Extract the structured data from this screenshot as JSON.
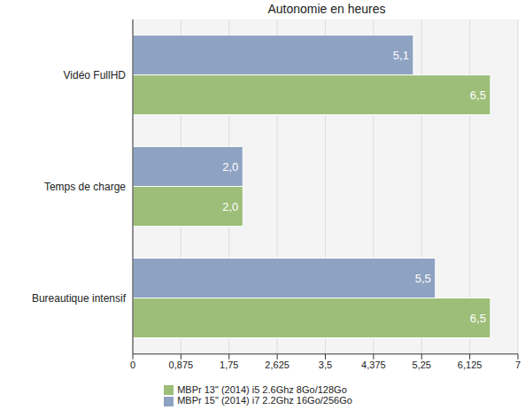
{
  "chart_data": {
    "type": "bar",
    "title": "Autonomie en heures",
    "orientation": "horizontal",
    "categories": [
      "Vidéo FullHD",
      "Temps de charge",
      "Bureautique intensif"
    ],
    "series": [
      {
        "name": "MBPr 15\" (2014) i7 2.2Ghz 16Go/256Go",
        "color": "#8ea2c2",
        "values": [
          5.1,
          2.0,
          5.5
        ],
        "value_labels": [
          "5,1",
          "2,0",
          "5,5"
        ]
      },
      {
        "name": "MBPr 13\" (2014) i5 2.6Ghz 8Go/128Go",
        "color": "#9cbe78",
        "values": [
          6.5,
          2.0,
          6.5
        ],
        "value_labels": [
          "6,5",
          "2,0",
          "6,5"
        ]
      }
    ],
    "xlim": [
      0,
      7
    ],
    "xticks": [
      0,
      {
        "value": 0.875,
        "label": "0,875"
      },
      {
        "value": 1.75,
        "label": "1,75"
      },
      {
        "value": 2.625,
        "label": "2,625"
      },
      {
        "value": 3.5,
        "label": "3,5"
      },
      {
        "value": 4.375,
        "label": "4,375"
      },
      {
        "value": 5.25,
        "label": "5,25"
      },
      {
        "value": 6.125,
        "label": "6,125"
      },
      7
    ],
    "grid": true,
    "legend": "bottom",
    "data_labels": true
  }
}
